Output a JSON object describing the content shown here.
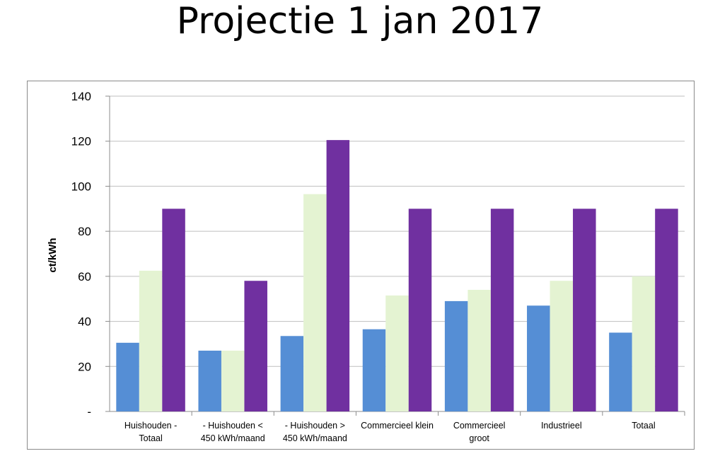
{
  "page": {
    "title": "Projectie 1 jan 2017"
  },
  "chart_data": {
    "type": "bar",
    "title": "",
    "xlabel": "",
    "ylabel": "ct/kWh",
    "ylim": [
      0,
      140
    ],
    "ytick_labels": [
      "-",
      "20",
      "40",
      "60",
      "80",
      "100",
      "120",
      "140"
    ],
    "categories": [
      [
        "Huishouden -",
        "Totaal"
      ],
      [
        "- Huishouden <",
        "450 kWh/maand"
      ],
      [
        "- Huishouden  >",
        "450 kWh/maand"
      ],
      [
        "Commercieel klein"
      ],
      [
        "Commercieel",
        "groot"
      ],
      [
        "Industrieel"
      ],
      [
        "Totaal"
      ]
    ],
    "series": [
      {
        "color": "#558ed5",
        "values": [
          30.5,
          27,
          33.5,
          36.5,
          49,
          47,
          35
        ]
      },
      {
        "color": "#e4f3d2",
        "values": [
          62.5,
          27,
          96.5,
          51.5,
          54,
          58,
          60
        ]
      },
      {
        "color": "#7030a0",
        "values": [
          90,
          58,
          120.5,
          90,
          90,
          90,
          90
        ]
      }
    ],
    "grid": true,
    "legend": "none"
  }
}
